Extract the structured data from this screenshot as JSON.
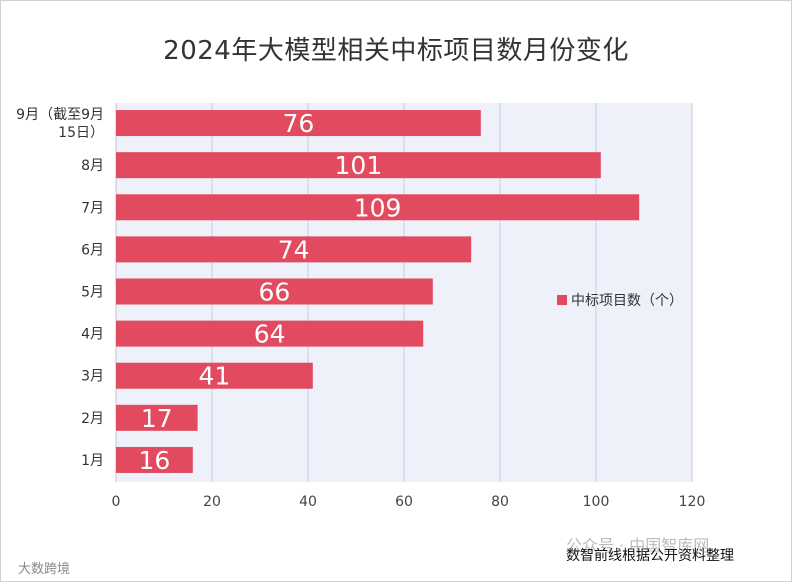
{
  "chart_data": {
    "type": "bar",
    "orientation": "horizontal",
    "title": "2024年大模型相关中标项目数月份变化",
    "categories": [
      "9月（截至9月15日）",
      "8月",
      "7月",
      "6月",
      "5月",
      "4月",
      "3月",
      "2月",
      "1月"
    ],
    "category_lines": [
      [
        "9月（截至9月",
        "15日）"
      ],
      [
        "8月"
      ],
      [
        "7月"
      ],
      [
        "6月"
      ],
      [
        "5月"
      ],
      [
        "4月"
      ],
      [
        "3月"
      ],
      [
        "2月"
      ],
      [
        "1月"
      ]
    ],
    "series": [
      {
        "name": "中标项目数（个）",
        "values": [
          76,
          101,
          109,
          74,
          66,
          64,
          41,
          17,
          16
        ],
        "color": "#e24a5f"
      }
    ],
    "xlim": [
      0,
      120
    ],
    "xticks": [
      0,
      20,
      40,
      60,
      80,
      100,
      120
    ],
    "xlabel": "",
    "ylabel": "",
    "grid": true,
    "legend_position": "right",
    "plot_background": "#eef1f9",
    "grid_color": "#c5cde3"
  },
  "watermarks": {
    "account": "公众号 · 中国智库网",
    "source": "数智前线根据公开资料整理",
    "brand": "大数跨境"
  }
}
